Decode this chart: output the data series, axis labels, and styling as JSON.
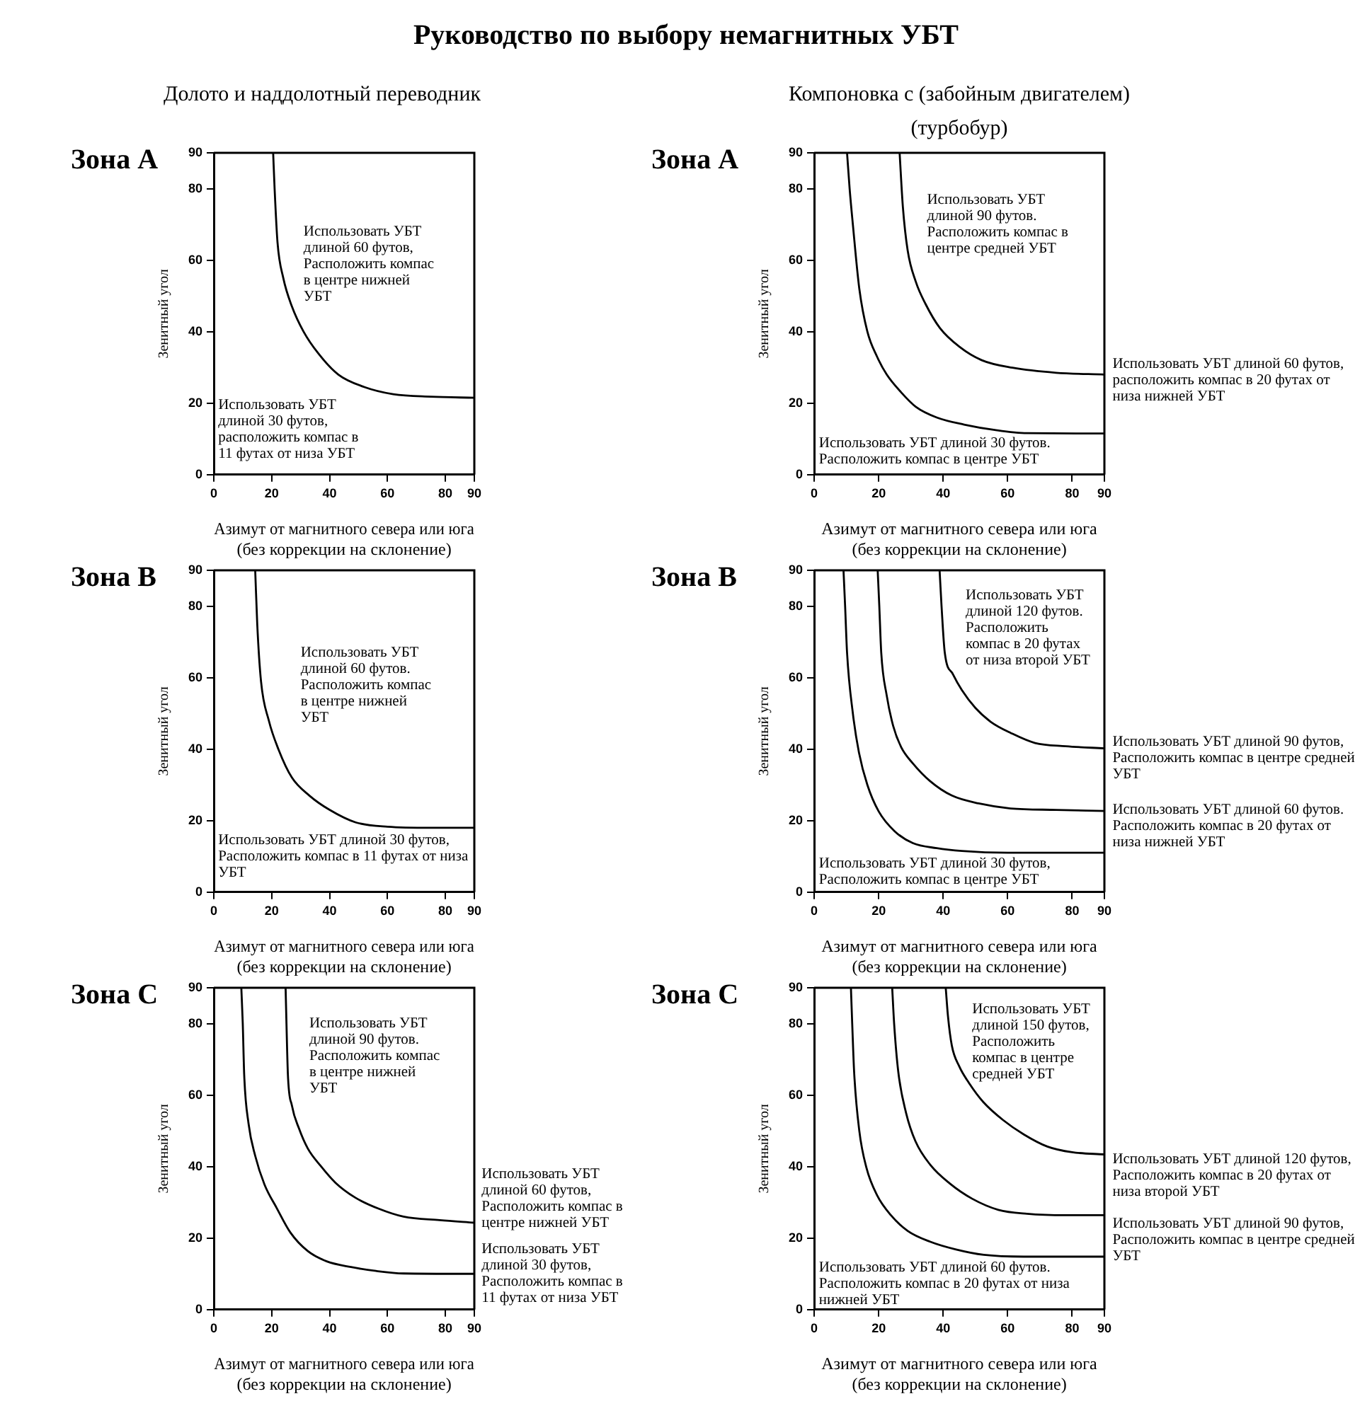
{
  "chart_data": [
    {
      "type": "other",
      "title": "Руководство по выбору немагнитных УБТ"
    },
    {
      "type": "line",
      "title": "Зона A",
      "subtitle": "Долото и наддолотный переводник",
      "xlabel": "Азимут от магнитного севера или юга\n(без коррекции на склонение)",
      "ylabel": "Зенитный угол",
      "xlim": [
        0,
        90
      ],
      "ylim": [
        0,
        90
      ],
      "xticks": [
        0,
        20,
        40,
        60,
        80,
        90
      ],
      "yticks": [
        0,
        20,
        40,
        60,
        80,
        90
      ],
      "grid": false,
      "marker": "none",
      "line_style": "solid",
      "series": [
        {
          "color": "#000000",
          "x": [
            20.5,
            21,
            22,
            24,
            27,
            31,
            36,
            43,
            52,
            62,
            75,
            90
          ],
          "values": [
            90,
            80,
            65,
            55,
            47,
            40,
            34,
            28,
            24.5,
            22.5,
            21.8,
            21.5
          ]
        }
      ],
      "annotations": [
        "Использовать УБТ длиной 60 футов, Расположить компас в центре нижней УБТ",
        "Использовать УБТ длиной 30 футов, расположить компас в 11 футах от низа УБТ"
      ]
    },
    {
      "type": "line",
      "title": "Зона A",
      "subtitle": "Компоновка с (забойным двигателем)\n(турбобур)",
      "xlabel": "Азимут от магнитного севера или юга\n(без коррекции на склонение)",
      "ylabel": "Зенитный угол",
      "xlim": [
        0,
        90
      ],
      "ylim": [
        0,
        90
      ],
      "xticks": [
        0,
        20,
        40,
        60,
        80,
        90
      ],
      "yticks": [
        0,
        20,
        40,
        60,
        80,
        90
      ],
      "grid": false,
      "marker": "none",
      "line_style": "solid",
      "series": [
        {
          "color": "#000000",
          "x": [
            10.2,
            11,
            12,
            14,
            16.5,
            19.5,
            22.5,
            27,
            31.5,
            38,
            46.5,
            56,
            66,
            90
          ],
          "values": [
            90,
            80,
            70,
            52,
            40,
            33,
            28,
            23,
            19,
            16,
            14,
            12.5,
            11.6,
            11.5
          ]
        },
        {
          "color": "#000000",
          "x": [
            26.5,
            27.5,
            29,
            31.5,
            34.5,
            39,
            45,
            52,
            61.5,
            75,
            90
          ],
          "values": [
            90,
            75,
            62.7,
            54,
            47.8,
            41,
            35.8,
            32,
            29.9,
            28.5,
            28
          ]
        }
      ],
      "annotations": [
        "Использовать УБТ длиной 90 футов. Расположить компас в центре средней УБТ",
        "Использовать УБТ длиной 60 футов, расположить компас в 20 футах от низа нижней УБТ",
        "Использовать УБТ длиной 30 футов. Расположить компас в центре УБТ"
      ]
    },
    {
      "type": "line",
      "title": "Зона B",
      "xlabel": "Азимут от магнитного севера или юга\n(без коррекции на склонение)",
      "ylabel": "Зенитный угол",
      "xlim": [
        0,
        90
      ],
      "ylim": [
        0,
        90
      ],
      "xticks": [
        0,
        20,
        40,
        60,
        80,
        90
      ],
      "yticks": [
        0,
        20,
        40,
        60,
        80,
        90
      ],
      "grid": false,
      "marker": "none",
      "line_style": "solid",
      "series": [
        {
          "color": "#000000",
          "x": [
            14.3,
            15,
            16.3,
            19,
            22.3,
            27,
            33,
            40,
            49,
            60,
            75,
            90
          ],
          "values": [
            90,
            75,
            59,
            48,
            40,
            32,
            27,
            23,
            19.5,
            18.3,
            18,
            18
          ]
        }
      ],
      "annotations": [
        "Использовать УБТ длиной 60 футов. Расположить компас в центре нижней УБТ",
        "Использовать УБТ длиной 30 футов, Расположить компас в 11 футах от низа УБТ"
      ]
    },
    {
      "type": "line",
      "title": "Зона B",
      "xlabel": "Азимут от магнитного севера или юга\n(без коррекции на склонение)",
      "ylabel": "Зенитный угол",
      "xlim": [
        0,
        90
      ],
      "ylim": [
        0,
        90
      ],
      "xticks": [
        0,
        20,
        40,
        60,
        80,
        90
      ],
      "yticks": [
        0,
        20,
        40,
        60,
        80,
        90
      ],
      "grid": false,
      "marker": "none",
      "line_style": "solid",
      "series": [
        {
          "color": "#000000",
          "x": [
            9.1,
            9.6,
            10.2,
            12,
            13.9,
            16.5,
            20,
            25,
            30.6,
            38,
            45.8,
            60,
            90
          ],
          "values": [
            90,
            80,
            67,
            50,
            39,
            30,
            22.6,
            17,
            13.7,
            12.3,
            11.5,
            11,
            11
          ]
        },
        {
          "color": "#000000",
          "x": [
            19.7,
            20.2,
            20.8,
            22.5,
            24.5,
            27,
            30.6,
            36,
            42.7,
            51,
            60.9,
            75,
            90
          ],
          "values": [
            90,
            80,
            67,
            55,
            46.5,
            40.5,
            36,
            31,
            27,
            24.8,
            23.4,
            23,
            22.7
          ]
        },
        {
          "color": "#000000",
          "x": [
            38.9,
            39.5,
            40.5,
            43,
            45.8,
            50,
            54.8,
            61,
            68.5,
            78,
            90
          ],
          "values": [
            90,
            80,
            67,
            61,
            56.5,
            51.5,
            47.6,
            44.5,
            41.7,
            40.8,
            40.2
          ]
        }
      ],
      "annotations": [
        "Использовать УБТ длиной 120 футов. Расположить компас в 20 футах от низа второй УБТ",
        "Использовать УБТ длиной 90 футов, Расположить компас в центре средней УБТ",
        "Использовать УБТ длиной 60 футов. Расположить компас в 20 футах от низа нижней УБТ",
        "Использовать УБТ длиной 30 футов, Расположить компас в центре УБТ"
      ]
    },
    {
      "type": "line",
      "title": "Зона C",
      "xlabel": "Азимут от магнитного севера или юга\n(без коррекции на склонение)",
      "ylabel": "Зенитный угол",
      "xlim": [
        0,
        90
      ],
      "ylim": [
        0,
        90
      ],
      "xticks": [
        0,
        20,
        40,
        60,
        80,
        90
      ],
      "yticks": [
        0,
        20,
        40,
        60,
        80,
        90
      ],
      "grid": false,
      "marker": "none",
      "line_style": "solid",
      "series": [
        {
          "color": "#000000",
          "x": [
            9.5,
            10,
            10.5,
            12,
            14.3,
            17.5,
            21.8,
            26.5,
            32.4,
            39,
            47.4,
            56,
            65.5,
            90
          ],
          "values": [
            90,
            80,
            65.6,
            52,
            43,
            35,
            28.3,
            21.5,
            16.4,
            13.5,
            11.9,
            10.8,
            10.1,
            10
          ]
        },
        {
          "color": "#000000",
          "x": [
            24.8,
            25.1,
            25.6,
            27,
            29.4,
            32.5,
            36.9,
            42,
            48.9,
            57,
            65.5,
            78,
            90
          ],
          "values": [
            90,
            80,
            65.6,
            57,
            50.7,
            45,
            40.2,
            35.5,
            31.3,
            28.2,
            26,
            25,
            24.3
          ]
        }
      ],
      "annotations": [
        "Использовать УБТ длиной 90 футов. Расположить компас в центре нижней УБТ",
        "Использовать УБТ длиной 60 футов, Расположить компас в центре нижней УБТ",
        "Использовать УБТ длиной 30 футов, Расположить компас в 11 футах от низа УБТ"
      ]
    },
    {
      "type": "line",
      "title": "Зона C",
      "xlabel": "Азимут от магнитного севера или юга\n(без коррекции на склонение)",
      "ylabel": "Зенитный угол",
      "xlim": [
        0,
        90
      ],
      "ylim": [
        0,
        90
      ],
      "xticks": [
        0,
        20,
        40,
        60,
        80,
        90
      ],
      "yticks": [
        0,
        20,
        40,
        60,
        80,
        90
      ],
      "grid": false,
      "marker": "none",
      "line_style": "solid",
      "series": [
        {
          "color": "#000000",
          "x": [
            11.4,
            11.8,
            12.4,
            14,
            16.2,
            19.5,
            23.8,
            29,
            35.9,
            44,
            52.6,
            65,
            90
          ],
          "values": [
            90,
            80,
            66.4,
            50,
            39.7,
            32,
            26.4,
            22,
            19,
            16.8,
            15.3,
            14.8,
            14.8
          ]
        },
        {
          "color": "#000000",
          "x": [
            24.2,
            24.8,
            26.1,
            28.5,
            31.4,
            36,
            42,
            49,
            57.1,
            66,
            78,
            90
          ],
          "values": [
            90,
            80,
            66.4,
            55,
            47.1,
            40.5,
            35.3,
            31,
            27.9,
            26.8,
            26.4,
            26.4
          ]
        },
        {
          "color": "#000000",
          "x": [
            40.8,
            41.5,
            42.7,
            45,
            48,
            52.5,
            58.6,
            65,
            72.3,
            80,
            90
          ],
          "values": [
            90,
            82,
            73.8,
            68,
            63.4,
            58,
            53,
            49,
            45.6,
            44,
            43.4
          ]
        }
      ],
      "annotations": [
        "Использовать УБТ длиной 150 футов, Расположить компас в центре средней УБТ",
        "Использовать УБТ длиной 120 футов, Расположить компас в 20 футах от низа второй УБТ",
        "Использовать УБТ длиной 90 футов, Расположить компас в центре средней УБТ",
        "Использовать УБТ длиной 60 футов. Расположить компас в 20 футах от низа нижней УБТ"
      ]
    }
  ]
}
